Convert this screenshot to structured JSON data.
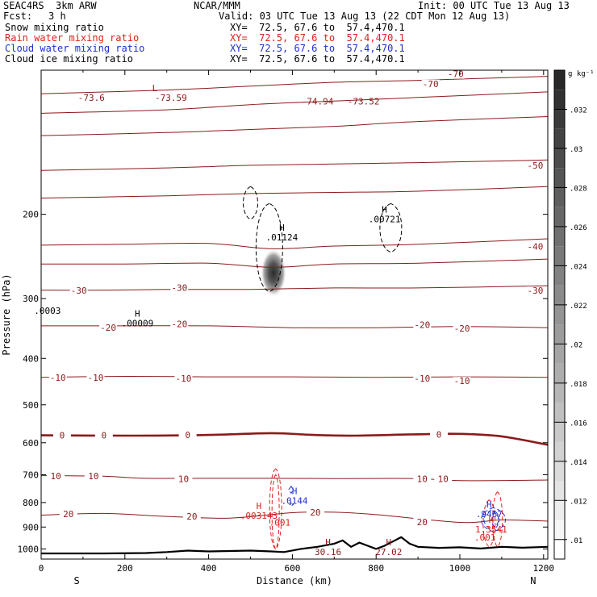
{
  "header": {
    "title": "SEAC4RS  3km ARW",
    "org": "NCAR/MMM",
    "init": "Init: 00 UTC Tue 13 Aug 13",
    "fcst_label": "Fcst:",
    "fcst_value": "3 h",
    "valid": "Valid: 03 UTC Tue 13 Aug 13 (22 CDT Mon 12 Aug 13)"
  },
  "fields": [
    {
      "name": "Snow mixing ratio",
      "xy": "XY=  72.5, 67.6 to  57.4,470.1",
      "color": "#000000"
    },
    {
      "name": "Rain water mixing ratio",
      "xy": "XY=  72.5, 67.6 to  57.4,470.1",
      "color": "#e02020"
    },
    {
      "name": "Cloud water mixing ratio",
      "xy": "XY=  72.5, 67.6 to  57.4,470.1",
      "color": "#1f2fcf"
    },
    {
      "name": "Cloud ice mixing ratio",
      "xy": "XY=  72.5, 67.6 to  57.4,470.1",
      "color": "#000000"
    }
  ],
  "colorbar": {
    "unit": "g kg⁻¹",
    "ticks": [
      ".01",
      ".012",
      ".014",
      ".016",
      ".018",
      ".02",
      ".022",
      ".024",
      ".026",
      ".028",
      ".03",
      ".032"
    ],
    "range": [
      0.009,
      0.034
    ]
  },
  "chart_data": {
    "type": "cross-section",
    "xlabel": "Distance (km)",
    "ylabel": "Pressure (hPa)",
    "x_ticks": [
      "0",
      "200",
      "400",
      "600",
      "800",
      "1000",
      "1200"
    ],
    "y_ticks": [
      "200",
      "300",
      "400",
      "500",
      "600",
      "700",
      "800",
      "900",
      "1000"
    ],
    "xlim": [
      0,
      1210
    ],
    "ylim": [
      1050,
      100
    ],
    "y_scale": "log",
    "endpoints": {
      "left": "S",
      "right": "N"
    },
    "temperature_contours": [
      {
        "label": "-70",
        "points": [
          [
            0,
            112
          ],
          [
            300,
            110
          ],
          [
            500,
            108
          ],
          [
            700,
            106
          ],
          [
            900,
            105
          ],
          [
            1210,
            103
          ]
        ],
        "labels": [
          [
            930,
            108
          ],
          [
            990,
            103
          ]
        ],
        "bold": false
      },
      {
        "label": "",
        "points": [
          [
            0,
            123
          ],
          [
            300,
            121
          ],
          [
            500,
            118
          ],
          [
            700,
            116
          ],
          [
            900,
            114
          ],
          [
            1210,
            111
          ]
        ],
        "labels": [],
        "bold": false
      },
      {
        "label": "",
        "points": [
          [
            0,
            137
          ],
          [
            300,
            135
          ],
          [
            500,
            133
          ],
          [
            700,
            131
          ],
          [
            900,
            128
          ],
          [
            1210,
            125
          ]
        ],
        "labels": [],
        "bold": false
      },
      {
        "label": "-50",
        "points": [
          [
            0,
            162
          ],
          [
            300,
            160
          ],
          [
            500,
            158
          ],
          [
            700,
            157
          ],
          [
            900,
            156
          ],
          [
            1210,
            154
          ]
        ],
        "labels": [
          [
            1180,
            160
          ]
        ],
        "bold": false
      },
      {
        "label": "",
        "points": [
          [
            0,
            185
          ],
          [
            300,
            183
          ],
          [
            500,
            181
          ],
          [
            700,
            180
          ],
          [
            900,
            179
          ],
          [
            1210,
            175
          ]
        ],
        "labels": [],
        "bold": false
      },
      {
        "label": "-40",
        "points": [
          [
            0,
            232
          ],
          [
            200,
            231
          ],
          [
            400,
            230
          ],
          [
            550,
            236
          ],
          [
            700,
            233
          ],
          [
            900,
            231
          ],
          [
            1210,
            225
          ]
        ],
        "labels": [
          [
            1180,
            236
          ]
        ],
        "bold": false
      },
      {
        "label": "",
        "points": [
          [
            0,
            254
          ],
          [
            200,
            254
          ],
          [
            400,
            253
          ],
          [
            550,
            258
          ],
          [
            700,
            254
          ],
          [
            900,
            253
          ],
          [
            1210,
            248
          ]
        ],
        "labels": [],
        "bold": false
      },
      {
        "label": "-30",
        "points": [
          [
            0,
            288
          ],
          [
            150,
            288
          ],
          [
            300,
            287
          ],
          [
            500,
            287
          ],
          [
            700,
            285
          ],
          [
            900,
            285
          ],
          [
            1210,
            282
          ]
        ],
        "labels": [
          [
            90,
            292
          ],
          [
            330,
            288
          ],
          [
            1180,
            292
          ]
        ],
        "bold": false
      },
      {
        "label": "-20",
        "points": [
          [
            0,
            342
          ],
          [
            200,
            342
          ],
          [
            400,
            342
          ],
          [
            600,
            345
          ],
          [
            800,
            345
          ],
          [
            1000,
            343
          ],
          [
            1210,
            345
          ]
        ],
        "labels": [
          [
            160,
            349
          ],
          [
            330,
            343
          ],
          [
            910,
            344
          ],
          [
            1005,
            350
          ]
        ],
        "bold": false
      },
      {
        "label": "-10",
        "points": [
          [
            0,
            438
          ],
          [
            200,
            436
          ],
          [
            400,
            437
          ],
          [
            600,
            437
          ],
          [
            800,
            438
          ],
          [
            1000,
            437
          ],
          [
            1210,
            438
          ]
        ],
        "labels": [
          [
            40,
            444
          ],
          [
            130,
            444
          ],
          [
            340,
            445
          ],
          [
            910,
            445
          ],
          [
            1005,
            451
          ]
        ],
        "bold": false
      },
      {
        "label": "0",
        "points": [
          [
            0,
            579
          ],
          [
            200,
            580
          ],
          [
            400,
            578
          ],
          [
            550,
            573
          ],
          [
            650,
            578
          ],
          [
            750,
            580
          ],
          [
            900,
            576
          ],
          [
            1000,
            575
          ],
          [
            1100,
            582
          ],
          [
            1210,
            606
          ]
        ],
        "labels": [
          [
            50,
            586
          ],
          [
            150,
            586
          ],
          [
            350,
            584
          ],
          [
            950,
            583
          ]
        ],
        "bold": true
      },
      {
        "label": "10",
        "points": [
          [
            0,
            703
          ],
          [
            150,
            705
          ],
          [
            250,
            712
          ],
          [
            400,
            712
          ],
          [
            550,
            712
          ],
          [
            700,
            713
          ],
          [
            900,
            713
          ],
          [
            1000,
            720
          ],
          [
            1210,
            718
          ]
        ],
        "labels": [
          [
            35,
            712
          ],
          [
            125,
            712
          ],
          [
            340,
            722
          ],
          [
            910,
            722
          ],
          [
            960,
            722
          ]
        ],
        "bold": false
      },
      {
        "label": "20",
        "points": [
          [
            0,
            850
          ],
          [
            150,
            843
          ],
          [
            300,
            855
          ],
          [
            450,
            862
          ],
          [
            600,
            840
          ],
          [
            700,
            838
          ],
          [
            800,
            848
          ],
          [
            1000,
            880
          ],
          [
            1100,
            870
          ],
          [
            1210,
            875
          ]
        ],
        "labels": [
          [
            65,
            855
          ],
          [
            360,
            865
          ],
          [
            655,
            848
          ],
          [
            910,
            888
          ]
        ],
        "bold": false
      }
    ],
    "max_labels": [
      {
        "label": "H",
        "value": ".01124",
        "x": 575,
        "p": 218,
        "color": "#000000"
      },
      {
        "label": "H",
        "value": ".00721",
        "x": 820,
        "p": 200,
        "color": "#000000"
      },
      {
        "label": "H",
        "value": ".00009",
        "x": 230,
        "p": 330,
        "color": "#000000"
      },
      {
        "label": "H",
        "value": ".0144",
        "x": 605,
        "p": 775,
        "color": "#1f2fcf"
      },
      {
        "label": "H",
        "value": ".003143",
        "x": 520,
        "p": 832,
        "color": "#e02020"
      },
      {
        "label": "H",
        "value": ".9467",
        "x": 1070,
        "p": 825,
        "color": "#1f2fcf"
      },
      {
        "label": "H",
        "value": "30.16",
        "x": 685,
        "p": 990,
        "color": "#8b1a1a"
      },
      {
        "label": "H",
        "value": "27.02",
        "x": 830,
        "p": 990,
        "color": "#8b1a1a"
      },
      {
        "label": "H",
        "value": "1.3541",
        "x": 1075,
        "p": 888,
        "color": "#e02020"
      }
    ],
    "min_labels": [
      {
        "label": "L",
        "value": "-73.59",
        "x": 310,
        "p": 114,
        "color": "#8b1a1a"
      },
      {
        "label": "",
        "value": "-73.6",
        "x": 120,
        "p": 114,
        "color": "#8b1a1a"
      },
      {
        "label": "",
        "value": "-74.94",
        "x": 660,
        "p": 116,
        "color": "#8b1a1a"
      },
      {
        "label": "",
        "value": "-73.52",
        "x": 770,
        "p": 116,
        "color": "#8b1a1a"
      },
      {
        "label": "",
        "value": ".0003",
        "x": 15,
        "p": 318,
        "color": "#000000"
      },
      {
        "label": "",
        "value": ".001",
        "x": 570,
        "p": 880,
        "color": "#e02020"
      },
      {
        "label": "",
        "value": ".001",
        "x": 1060,
        "p": 945,
        "color": "#e02020"
      }
    ],
    "snow_max": {
      "x": 555,
      "p": 265,
      "value": 0.033
    },
    "terrain_profile": [
      [
        0,
        1022
      ],
      [
        150,
        1022
      ],
      [
        250,
        1020
      ],
      [
        300,
        1015
      ],
      [
        350,
        1008
      ],
      [
        400,
        1012
      ],
      [
        450,
        1010
      ],
      [
        500,
        1008
      ],
      [
        550,
        1012
      ],
      [
        580,
        1015
      ],
      [
        620,
        1000
      ],
      [
        660,
        990
      ],
      [
        700,
        975
      ],
      [
        720,
        960
      ],
      [
        740,
        990
      ],
      [
        760,
        970
      ],
      [
        780,
        985
      ],
      [
        800,
        1000
      ],
      [
        820,
        985
      ],
      [
        840,
        965
      ],
      [
        860,
        945
      ],
      [
        880,
        975
      ],
      [
        900,
        990
      ],
      [
        950,
        995
      ],
      [
        1000,
        992
      ],
      [
        1050,
        998
      ],
      [
        1100,
        990
      ],
      [
        1150,
        994
      ],
      [
        1210,
        990
      ]
    ]
  }
}
